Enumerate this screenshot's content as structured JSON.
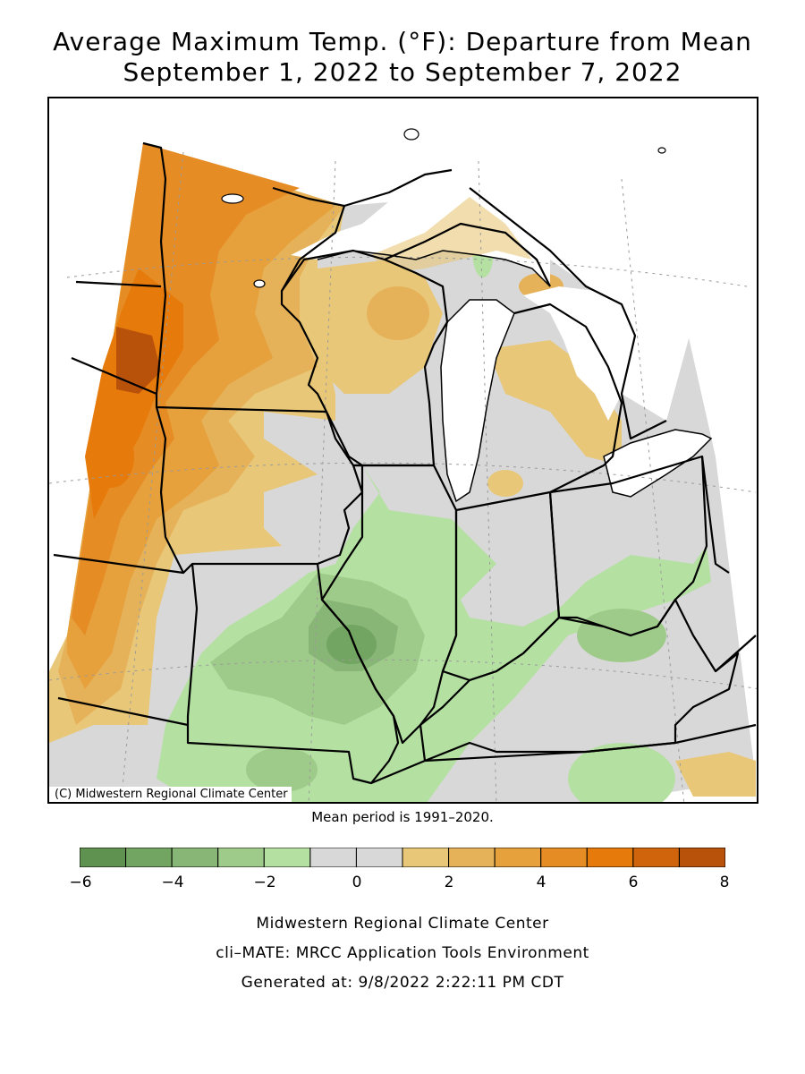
{
  "title_line1": "Average Maximum Temp. (°F): Departure from Mean",
  "title_line2": "September 1, 2022 to September 7, 2022",
  "copyright": "(C) Midwestern Regional Climate Center",
  "mean_period": "Mean period is 1991–2020.",
  "legend": {
    "colors": [
      "#5f9150",
      "#73a562",
      "#88b676",
      "#9fcb8a",
      "#b4e0a2",
      "#d8d8d8",
      "#d8d8d8",
      "#e8c778",
      "#e6b259",
      "#e6a03c",
      "#e68c25",
      "#e67a0a",
      "#d0640c",
      "#b8510a"
    ],
    "tick_labels": [
      "−6",
      "−4",
      "−2",
      "0",
      "2",
      "4",
      "6",
      "8"
    ]
  },
  "footer": {
    "line1": "Midwestern Regional Climate Center",
    "line2": "cli–MATE: MRCC Application Tools Environment",
    "line3": "Generated at: 9/8/2022 2:22:11 PM CDT"
  }
}
